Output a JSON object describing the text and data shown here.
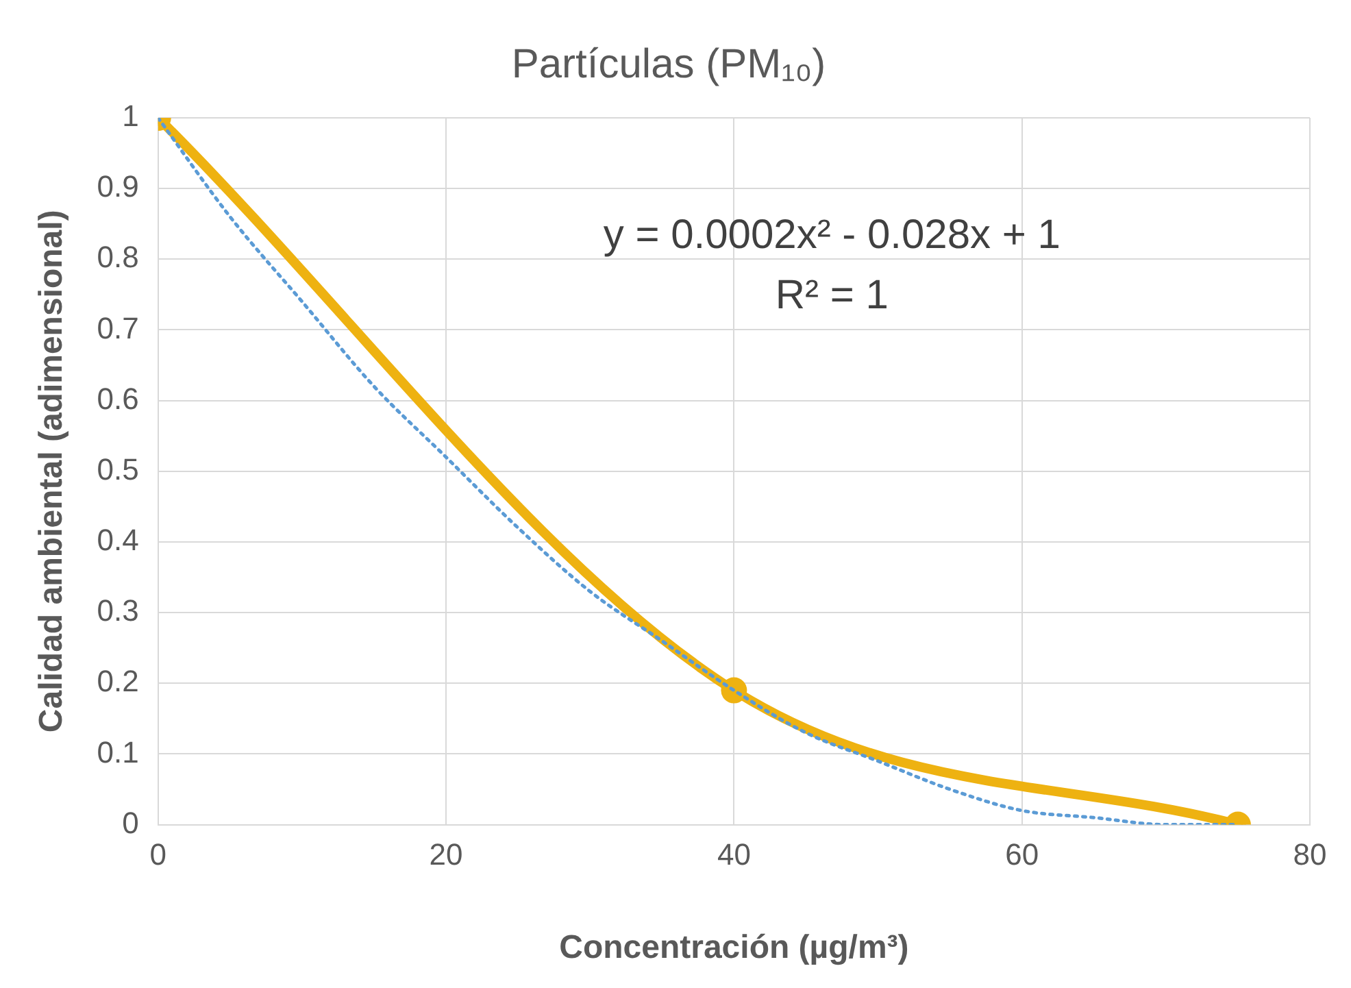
{
  "chart_data": {
    "type": "line",
    "title": "Partículas (PM₁₀)",
    "xlabel": "Concentración (µg/m³)",
    "ylabel": "Calidad ambiental (adimensional)",
    "x": [
      0,
      40,
      75
    ],
    "series": [
      {
        "color": "#eeb211",
        "values": [
          1,
          0.19,
          0
        ],
        "marker": "circle",
        "line_style": "solid"
      },
      {
        "type": "line",
        "color": "#5b9bd5",
        "line_style": "dotted",
        "marker": "none",
        "x": [
          0,
          5,
          10,
          15,
          20,
          25,
          30,
          35,
          40,
          45,
          50,
          55,
          60,
          65,
          70,
          75
        ],
        "values": [
          1,
          0.86,
          0.74,
          0.62,
          0.52,
          0.42,
          0.33,
          0.26,
          0.19,
          0.13,
          0.09,
          0.05,
          0.02,
          0.01,
          0,
          0
        ]
      }
    ],
    "xlim": [
      0,
      80
    ],
    "xticks": [
      0,
      20,
      40,
      60,
      80
    ],
    "ylim": [
      0,
      1
    ],
    "yticks": [
      0,
      0.1,
      0.2,
      0.3,
      0.4,
      0.5,
      0.6,
      0.7,
      0.8,
      0.9,
      1
    ],
    "annotations": [
      "y = 0.0002x² - 0.028x + 1",
      "R² = 1"
    ],
    "grid": true,
    "legend": false
  }
}
